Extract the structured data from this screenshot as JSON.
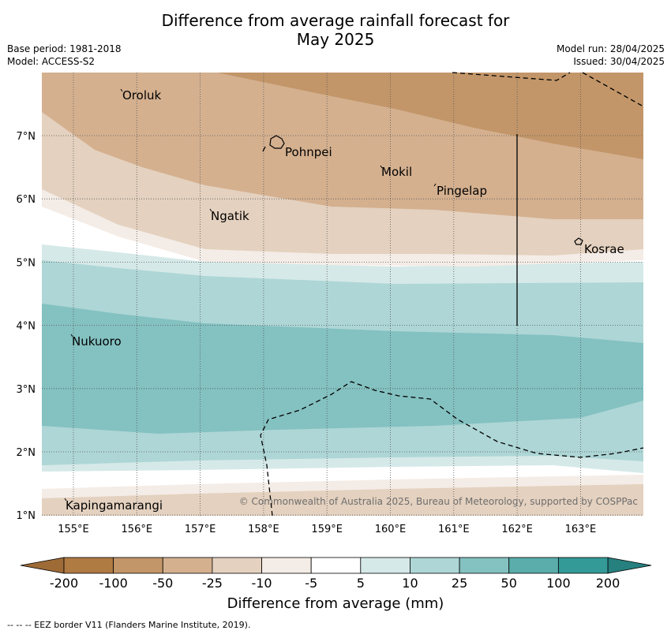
{
  "title_line1": "Difference from average rainfall forecast for",
  "title_line2": "May 2025",
  "meta": {
    "base_period": "Base period: 1981-2018",
    "model": "Model: ACCESS-S2",
    "model_run": "Model run: 28/04/2025",
    "issued": "Issued: 30/04/2025"
  },
  "map": {
    "lon_ticks": [
      "155°E",
      "156°E",
      "157°E",
      "158°E",
      "159°E",
      "160°E",
      "161°E",
      "162°E",
      "163°E"
    ],
    "lat_ticks": [
      "7°N",
      "6°N",
      "5°N",
      "4°N",
      "3°N",
      "2°N",
      "1°N"
    ],
    "places": [
      {
        "name": "Oroluk"
      },
      {
        "name": "Pohnpei"
      },
      {
        "name": "Mokil"
      },
      {
        "name": "Pingelap"
      },
      {
        "name": "Ngatik"
      },
      {
        "name": "Kosrae"
      },
      {
        "name": "Nukuoro"
      },
      {
        "name": "Kapingamarangi"
      }
    ],
    "copyright": "© Commonwealth of Australia 2025, Bureau of Meteorology, supported by COSPPac"
  },
  "colorbar": {
    "ticks": [
      "-200",
      "-100",
      "-50",
      "-25",
      "-10",
      "-5",
      "5",
      "10",
      "25",
      "50",
      "100",
      "200"
    ],
    "colors": [
      "#b07a43",
      "#c29669",
      "#d4b08f",
      "#e4d1bf",
      "#f4ece6",
      "#ffffff",
      "#d5e9e8",
      "#aed6d6",
      "#84c1c1",
      "#5aadab",
      "#349a98"
    ],
    "label": "Difference from average (mm)"
  },
  "footnote": "--  --  -- EEZ border V11 (Flanders Marine Institute, 2019)."
}
